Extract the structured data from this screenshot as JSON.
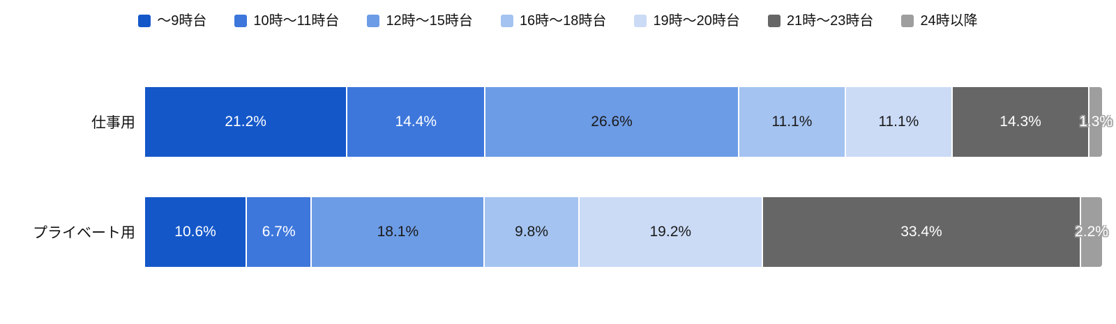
{
  "chart_data": {
    "type": "bar",
    "subtype": "horizontal-stacked",
    "unit": "%",
    "background": "#ffffff",
    "legend_position": "top",
    "xlim": [
      0,
      100
    ],
    "categories": [
      "仕事用",
      "プライベート用"
    ],
    "series": [
      {
        "name": "～9時台",
        "color": "#1457c9",
        "text": "light",
        "values": [
          21.2,
          10.6
        ]
      },
      {
        "name": "10時～11時台",
        "color": "#3d77dc",
        "text": "light",
        "values": [
          14.4,
          6.7
        ]
      },
      {
        "name": "12時～15時台",
        "color": "#6d9ce6",
        "text": "dark",
        "values": [
          26.6,
          18.1
        ]
      },
      {
        "name": "16時～18時台",
        "color": "#a4c3f0",
        "text": "dark",
        "values": [
          11.1,
          9.8
        ]
      },
      {
        "name": "19時～20時台",
        "color": "#cbdbf6",
        "text": "dark",
        "values": [
          11.1,
          19.2
        ]
      },
      {
        "name": "21時～23時台",
        "color": "#666666",
        "text": "light",
        "values": [
          14.3,
          33.4
        ]
      },
      {
        "name": "24時以降",
        "color": "#9e9e9e",
        "text": "light-halo",
        "values": [
          1.3,
          2.2
        ]
      }
    ],
    "value_labels": [
      [
        "21.2%",
        "14.4%",
        "26.6%",
        "11.1%",
        "11.1%",
        "14.3%",
        "1.3%"
      ],
      [
        "10.6%",
        "6.7%",
        "18.1%",
        "9.8%",
        "19.2%",
        "33.4%",
        "2.2%"
      ]
    ]
  }
}
